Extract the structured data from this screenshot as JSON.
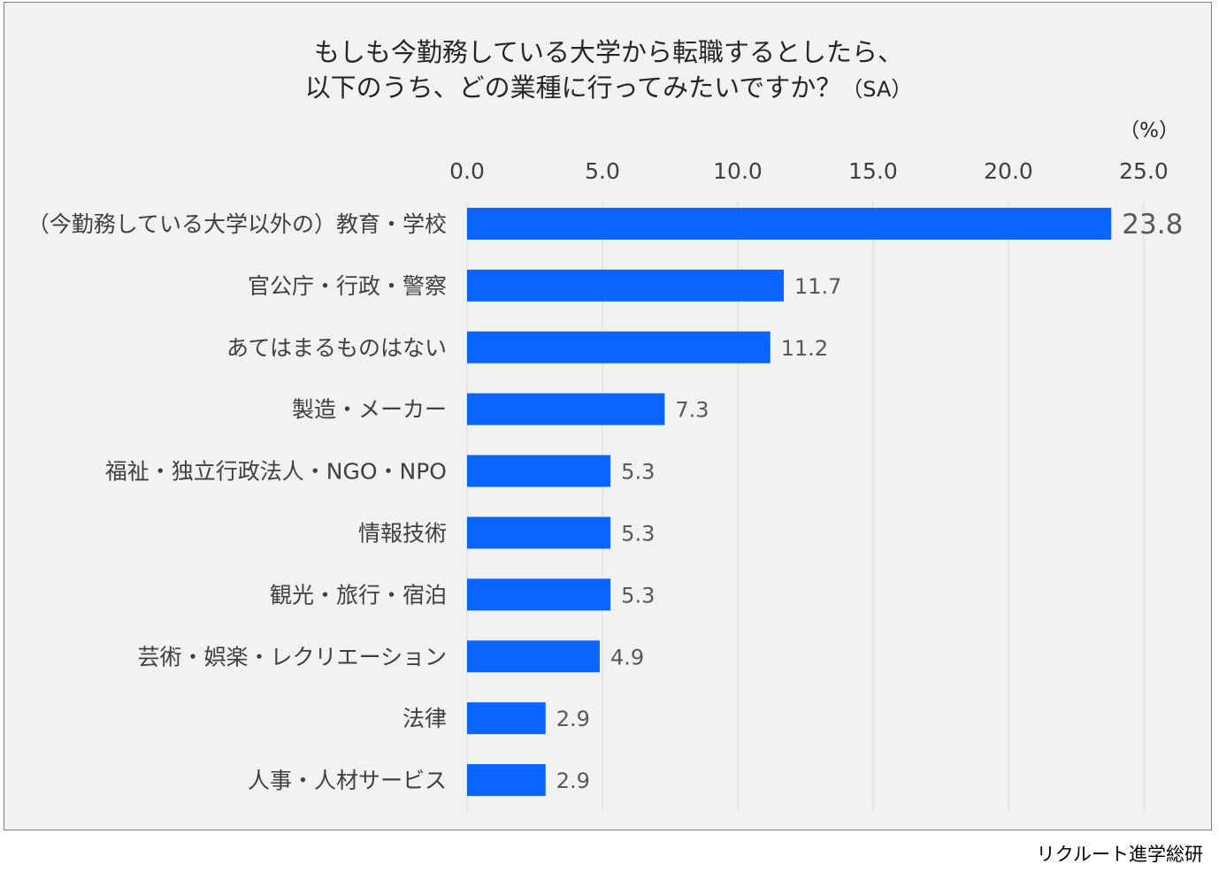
{
  "title": {
    "line1": "もしも今勤務している大学から転職するとしたら、",
    "line2": "以下のうち、どの業種に行ってみたいですか？",
    "suffix": "（SA）"
  },
  "unit_label": "（%）",
  "source": "リクルート進学総研",
  "colors": {
    "bar": "#0a64ff",
    "background": "#f2f2f2",
    "gridline": "#d9d9d9",
    "text": "#404040",
    "value_text": "#595959"
  },
  "chart_data": {
    "type": "bar",
    "orientation": "horizontal",
    "title": "もしも今勤務している大学から転職するとしたら、以下のうち、どの業種に行ってみたいですか？（SA）",
    "xlabel": "（%）",
    "ylabel": "",
    "xlim": [
      0,
      25
    ],
    "ticks": [
      "0.0",
      "5.0",
      "10.0",
      "15.0",
      "20.0",
      "25.0"
    ],
    "tick_values": [
      0,
      5,
      10,
      15,
      20,
      25
    ],
    "axis_position": "top",
    "grid": true,
    "categories": [
      "（今勤務している大学以外の）教育・学校",
      "官公庁・行政・警察",
      "あてはまるものはない",
      "製造・メーカー",
      "福祉・独立行政法人・NGO・NPO",
      "情報技術",
      "観光・旅行・宿泊",
      "芸術・娯楽・レクリエーション",
      "法律",
      "人事・人材サービス"
    ],
    "values": [
      23.8,
      11.7,
      11.2,
      7.3,
      5.3,
      5.3,
      5.3,
      4.9,
      2.9,
      2.9
    ],
    "value_labels": [
      "23.8",
      "11.7",
      "11.2",
      "7.3",
      "5.3",
      "5.3",
      "5.3",
      "4.9",
      "2.9",
      "2.9"
    ]
  }
}
